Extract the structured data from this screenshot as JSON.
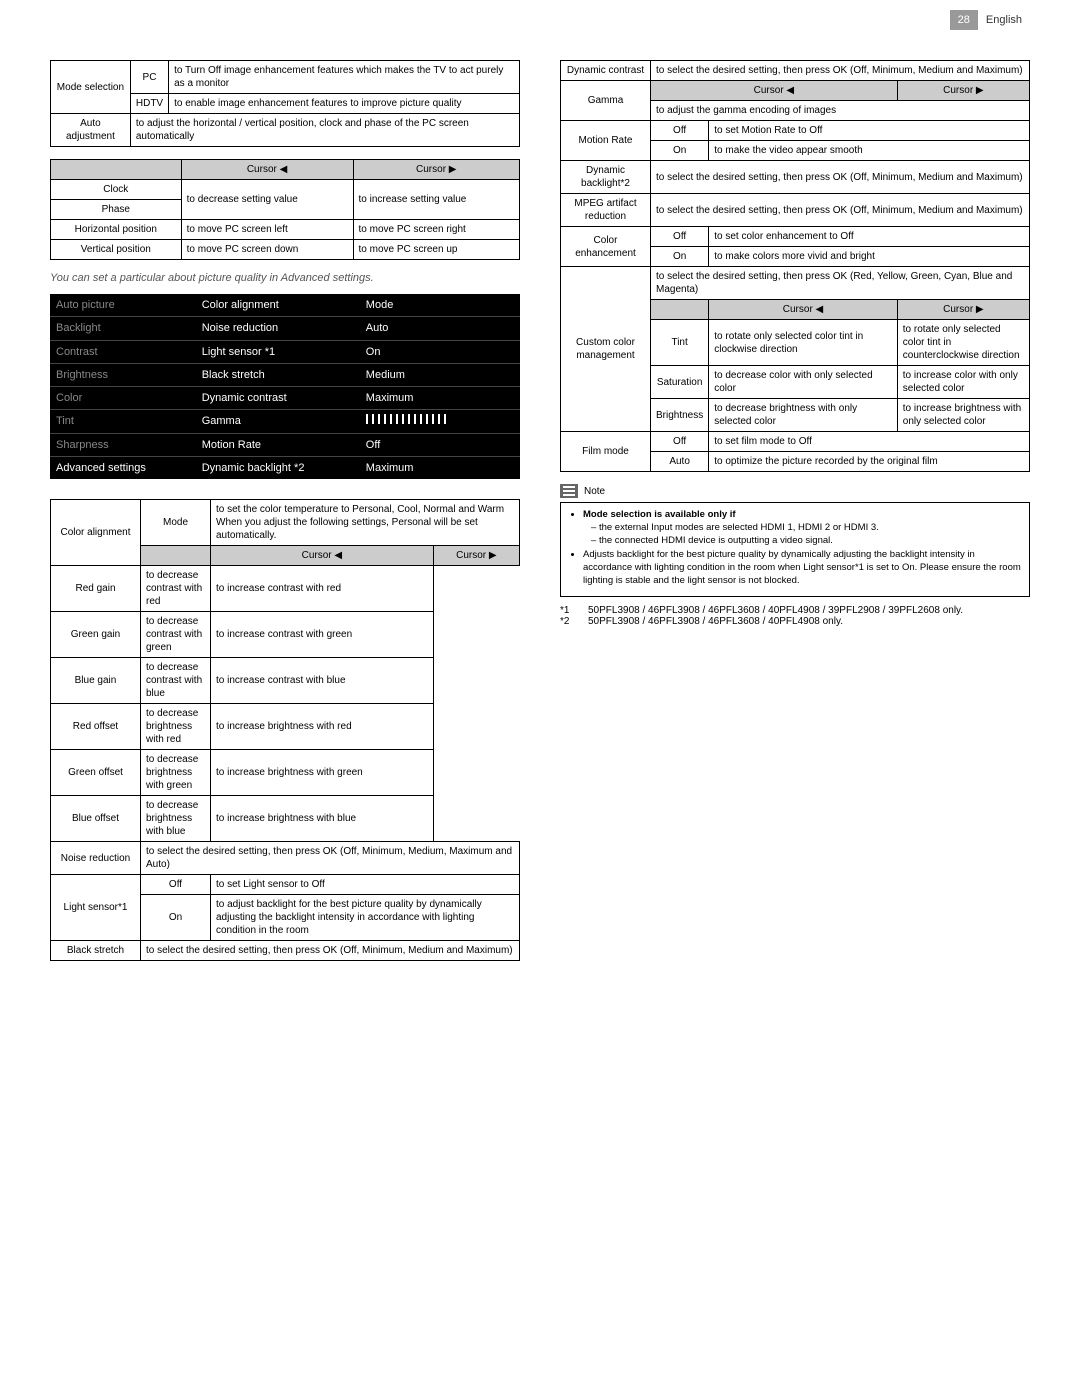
{
  "page_number": "28",
  "language": "English",
  "caption": "You can set a particular about picture quality in Advanced settings.",
  "cursor_left": "Cursor ◀",
  "cursor_right": "Cursor ▶",
  "mode_selection": {
    "label": "Mode selection",
    "pc": "PC",
    "pc_desc": "to Turn Off image enhancement features which makes the TV to act purely as a monitor",
    "hdtv": "HDTV",
    "hdtv_desc": "to enable image enhancement features to improve picture quality"
  },
  "auto_adj": {
    "label": "Auto adjustment",
    "desc": "to adjust the horizontal / vertical position, clock and phase of the PC screen automatically"
  },
  "clock_phase": {
    "clock": "Clock",
    "phase": "Phase",
    "dec": "to decrease setting value",
    "inc": "to increase setting value",
    "hpos": "Horizontal position",
    "hleft": "to move PC screen left",
    "hright": "to move PC screen right",
    "vpos": "Vertical position",
    "vdown": "to move PC screen down",
    "vup": "to move PC screen up"
  },
  "menu": {
    "rows": [
      [
        "Auto picture",
        "Color alignment",
        "Mode"
      ],
      [
        "Backlight",
        "Noise reduction",
        "Auto"
      ],
      [
        "Contrast",
        "Light sensor *1",
        "On"
      ],
      [
        "Brightness",
        "Black stretch",
        "Medium"
      ],
      [
        "Color",
        "Dynamic contrast",
        "Maximum"
      ],
      [
        "Tint",
        "Gamma",
        "SLIDER"
      ],
      [
        "Sharpness",
        "Motion Rate",
        "Off"
      ],
      [
        "Advanced settings",
        "Dynamic backlight *2",
        "Maximum"
      ]
    ]
  },
  "color_alignment": {
    "label": "Color alignment",
    "mode": "Mode",
    "mode_desc": "to set the color temperature to Personal, Cool, Normal and Warm When you adjust the following settings, Personal will be set automatically.",
    "rows": [
      [
        "Red gain",
        "to decrease contrast with red",
        "to increase contrast with red"
      ],
      [
        "Green gain",
        "to decrease contrast with green",
        "to increase contrast with green"
      ],
      [
        "Blue gain",
        "to decrease contrast with blue",
        "to increase contrast with blue"
      ],
      [
        "Red offset",
        "to decrease brightness with red",
        "to increase brightness with red"
      ],
      [
        "Green offset",
        "to decrease brightness with green",
        "to increase brightness with green"
      ],
      [
        "Blue offset",
        "to decrease brightness with blue",
        "to increase brightness with blue"
      ]
    ]
  },
  "noise_reduction": {
    "label": "Noise reduction",
    "desc": "to select the desired setting, then press OK (Off, Minimum, Medium, Maximum and Auto)"
  },
  "light_sensor": {
    "label": "Light sensor*1",
    "off": "Off",
    "off_desc": "to set Light sensor to Off",
    "on": "On",
    "on_desc": "to adjust backlight for the best picture quality by dynamically adjusting the backlight intensity in accordance with lighting condition in the room"
  },
  "black_stretch": {
    "label": "Black stretch",
    "desc": "to select the desired setting, then press OK (Off, Minimum, Medium and Maximum)"
  },
  "dynamic_contrast": {
    "label": "Dynamic contrast",
    "desc": "to select the desired setting, then press OK (Off, Minimum, Medium and Maximum)"
  },
  "gamma": {
    "label": "Gamma",
    "desc": "to adjust the gamma encoding of images"
  },
  "motion_rate": {
    "label": "Motion Rate",
    "off": "Off",
    "off_desc": "to set Motion Rate to Off",
    "on": "On",
    "on_desc": "to make the video appear smooth"
  },
  "dyn_backlight": {
    "label": "Dynamic backlight*2",
    "desc": "to select the desired setting, then press OK (Off, Minimum, Medium and Maximum)"
  },
  "mpeg": {
    "label": "MPEG artifact reduction",
    "desc": "to select the desired setting, then press OK (Off, Minimum, Medium and Maximum)"
  },
  "color_enh": {
    "label": "Color enhancement",
    "off": "Off",
    "off_desc": "to set color enhancement to Off",
    "on": "On",
    "on_desc": "to make colors more vivid and bright"
  },
  "custom_color": {
    "label": "Custom color management",
    "desc": "to select the desired setting, then press OK (Red, Yellow, Green, Cyan, Blue and Magenta)",
    "tint": "Tint",
    "tint_l": "to rotate only selected color tint in clockwise direction",
    "tint_r": "to rotate only selected color tint in counterclockwise direction",
    "sat": "Saturation",
    "sat_l": "to decrease color with only selected color",
    "sat_r": "to increase color with only selected color",
    "bri": "Brightness",
    "bri_l": "to decrease brightness with only selected color",
    "bri_r": "to increase brightness with only selected color"
  },
  "film_mode": {
    "label": "Film mode",
    "off": "Off",
    "off_desc": "to set film mode to Off",
    "auto": "Auto",
    "auto_desc": "to optimize the picture recorded by the original film"
  },
  "note": {
    "label": "Note",
    "l1": "Mode selection is available only if",
    "l1a": "the external Input modes are selected HDMI 1, HDMI 2 or HDMI 3.",
    "l1b": "the connected HDMI device is outputting a video signal.",
    "l2": "Adjusts backlight for the best picture quality by dynamically adjusting the backlight intensity in accordance with lighting condition in the room when Light sensor*1 is set to On. Please ensure the room lighting is stable and the light sensor is not blocked."
  },
  "footnotes": {
    "f1k": "*1",
    "f1": "50PFL3908 / 46PFL3908 / 46PFL3608 / 40PFL4908 / 39PFL2908 / 39PFL2608 only.",
    "f2k": "*2",
    "f2": "50PFL3908 / 46PFL3908 / 46PFL3608 / 40PFL4908 only."
  }
}
